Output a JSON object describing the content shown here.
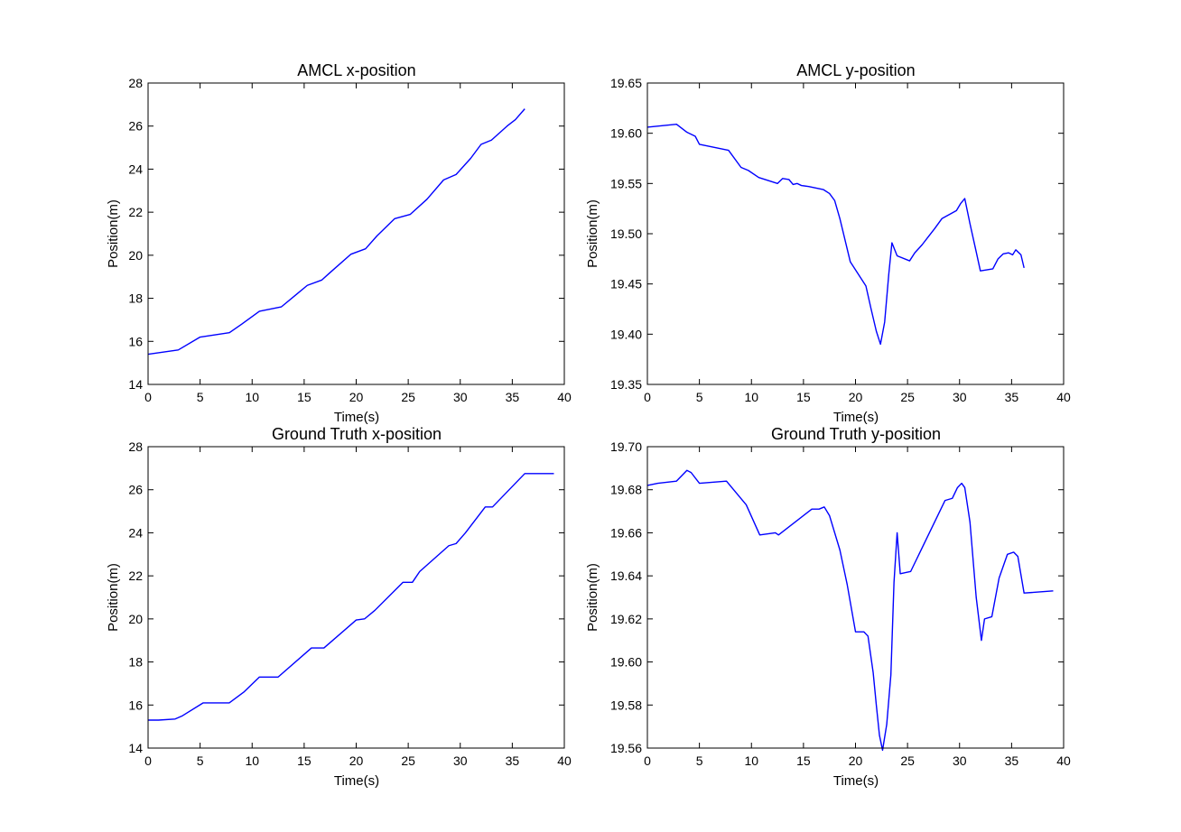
{
  "chart_data": [
    {
      "type": "line",
      "title": "AMCL x-position",
      "xlabel": "Time(s)",
      "ylabel": "Position(m)",
      "xlim": [
        0,
        40
      ],
      "ylim": [
        14,
        28
      ],
      "xticks": [
        "0",
        "5",
        "10",
        "15",
        "20",
        "25",
        "30",
        "35",
        "40"
      ],
      "yticks": [
        "14",
        "16",
        "18",
        "20",
        "22",
        "24",
        "26",
        "28"
      ],
      "grid": false,
      "series": [
        {
          "color": "#0000ff",
          "x": [
            0,
            2.9,
            5,
            7.8,
            9,
            10.7,
            12.8,
            14.3,
            15.3,
            16.7,
            17.5,
            19.5,
            20.9,
            22,
            23.7,
            25.2,
            26.8,
            28.4,
            29.6,
            31,
            32,
            33,
            34.5,
            35.3,
            36.2
          ],
          "y": [
            15.4,
            15.6,
            16.2,
            16.4,
            16.8,
            17.4,
            17.6,
            18.2,
            18.6,
            18.85,
            19.2,
            20.05,
            20.3,
            20.9,
            21.7,
            21.9,
            22.6,
            23.5,
            23.75,
            24.5,
            25.15,
            25.35,
            26,
            26.3,
            26.8
          ]
        }
      ]
    },
    {
      "type": "line",
      "title": "AMCL y-position",
      "xlabel": "Time(s)",
      "ylabel": "Position(m)",
      "xlim": [
        0,
        40
      ],
      "ylim": [
        19.35,
        19.65
      ],
      "xticks": [
        "0",
        "5",
        "10",
        "15",
        "20",
        "25",
        "30",
        "35",
        "40"
      ],
      "yticks": [
        "19.35",
        "19.40",
        "19.45",
        "19.50",
        "19.55",
        "19.60",
        "19.65"
      ],
      "grid": false,
      "series": [
        {
          "color": "#0000ff",
          "x": [
            0,
            2.8,
            3.8,
            4.6,
            5,
            7.8,
            9,
            9.7,
            10.7,
            12.5,
            13,
            13.6,
            14,
            14.4,
            14.8,
            15.5,
            16.9,
            17.5,
            18,
            18.5,
            19.5,
            21,
            21.5,
            22,
            22.4,
            22.8,
            23.2,
            23.5,
            24,
            25.2,
            25.7,
            26.4,
            27,
            27.6,
            28.3,
            29.7,
            30.1,
            30.5,
            31,
            31.6,
            32,
            33.2,
            33.7,
            34.2,
            34.7,
            35.1,
            35.4,
            35.9,
            36.2
          ],
          "y": [
            19.606,
            19.609,
            19.601,
            19.597,
            19.589,
            19.583,
            19.566,
            19.563,
            19.556,
            19.55,
            19.555,
            19.554,
            19.549,
            19.55,
            19.548,
            19.547,
            19.544,
            19.54,
            19.533,
            19.515,
            19.472,
            19.448,
            19.425,
            19.403,
            19.39,
            19.412,
            19.46,
            19.491,
            19.478,
            19.473,
            19.481,
            19.489,
            19.497,
            19.505,
            19.515,
            19.523,
            19.53,
            19.535,
            19.51,
            19.482,
            19.463,
            19.465,
            19.475,
            19.48,
            19.481,
            19.479,
            19.484,
            19.479,
            19.466
          ]
        }
      ]
    },
    {
      "type": "line",
      "title": "Ground Truth x-position",
      "xlabel": "Time(s)",
      "ylabel": "Position(m)",
      "xlim": [
        0,
        40
      ],
      "ylim": [
        14,
        28
      ],
      "xticks": [
        "0",
        "5",
        "10",
        "15",
        "20",
        "25",
        "30",
        "35",
        "40"
      ],
      "yticks": [
        "14",
        "16",
        "18",
        "20",
        "22",
        "24",
        "26",
        "28"
      ],
      "grid": false,
      "series": [
        {
          "color": "#0000ff",
          "x": [
            0,
            1,
            2.6,
            3.3,
            5.3,
            7.8,
            9.2,
            10.7,
            12.5,
            15.7,
            16.9,
            20,
            20.8,
            21.8,
            24.5,
            25.4,
            26.1,
            28.9,
            29.6,
            30.5,
            32.4,
            33.1,
            36.2,
            39
          ],
          "y": [
            15.3,
            15.3,
            15.35,
            15.5,
            16.1,
            16.1,
            16.6,
            17.3,
            17.3,
            18.65,
            18.65,
            19.95,
            20,
            20.4,
            21.7,
            21.7,
            22.2,
            23.4,
            23.5,
            24,
            25.2,
            25.2,
            26.75,
            26.75
          ]
        }
      ]
    },
    {
      "type": "line",
      "title": "Ground Truth y-position",
      "xlabel": "Time(s)",
      "ylabel": "Position(m)",
      "xlim": [
        0,
        40
      ],
      "ylim": [
        19.56,
        19.7
      ],
      "xticks": [
        "0",
        "5",
        "10",
        "15",
        "20",
        "25",
        "30",
        "35",
        "40"
      ],
      "yticks": [
        "19.56",
        "19.58",
        "19.60",
        "19.62",
        "19.64",
        "19.66",
        "19.68",
        "19.70"
      ],
      "grid": false,
      "series": [
        {
          "color": "#0000ff",
          "x": [
            0,
            1,
            2.8,
            3.8,
            4.2,
            5,
            7.6,
            9.5,
            10.8,
            12.3,
            12.6,
            15.8,
            16.5,
            17,
            17.5,
            18.5,
            19.2,
            20,
            20.8,
            21.2,
            21.7,
            22,
            22.3,
            22.6,
            23,
            23.4,
            23.7,
            24,
            24.3,
            25.3,
            28.6,
            29.3,
            29.8,
            30.2,
            30.5,
            31,
            31.6,
            32.1,
            32.4,
            33.1,
            33.8,
            34.6,
            35.2,
            35.6,
            36.2,
            39
          ],
          "y": [
            19.682,
            19.683,
            19.684,
            19.689,
            19.688,
            19.683,
            19.684,
            19.673,
            19.659,
            19.66,
            19.659,
            19.671,
            19.671,
            19.672,
            19.668,
            19.652,
            19.636,
            19.614,
            19.614,
            19.612,
            19.595,
            19.58,
            19.566,
            19.559,
            19.571,
            19.594,
            19.637,
            19.66,
            19.641,
            19.642,
            19.675,
            19.676,
            19.681,
            19.683,
            19.681,
            19.665,
            19.63,
            19.61,
            19.62,
            19.621,
            19.639,
            19.65,
            19.651,
            19.649,
            19.632,
            19.633
          ]
        }
      ]
    }
  ]
}
